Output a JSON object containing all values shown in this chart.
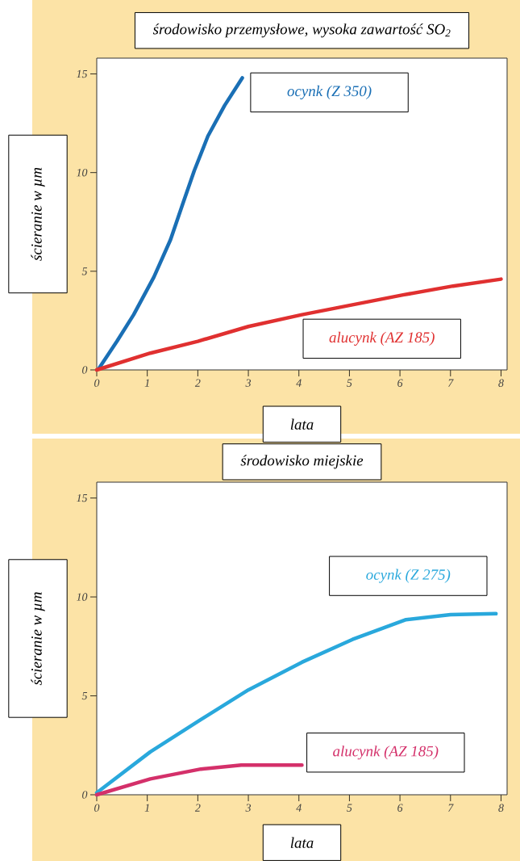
{
  "chart_data": [
    {
      "type": "line",
      "title": "środowisko przemysłowe, wysoka zawartość SO$_{2}$",
      "xlabel": "lata",
      "ylabel": "ścieranie w µm",
      "xlim": [
        0,
        8.12
      ],
      "ylim": [
        0,
        15.8
      ],
      "xticks": [
        0,
        1,
        2,
        3,
        4,
        5,
        6,
        7,
        8
      ],
      "yticks": [
        0,
        5,
        10,
        15
      ],
      "series": [
        {
          "name": "ocynk (Z 350)",
          "color": "#1a6fb5",
          "x": [
            0.05,
            0.4,
            0.73,
            1.13,
            1.46,
            1.7,
            1.93,
            2.2,
            2.53,
            2.88
          ],
          "values": [
            0.1,
            1.45,
            2.8,
            4.7,
            6.6,
            8.4,
            10.1,
            11.85,
            13.4,
            14.8
          ]
        },
        {
          "name": "alucynk (AZ 185)",
          "color": "#e03030",
          "x": [
            0,
            1.06,
            2,
            3,
            4.06,
            5.06,
            6.06,
            7.05,
            8
          ],
          "values": [
            0,
            0.85,
            1.45,
            2.2,
            2.8,
            3.3,
            3.8,
            4.25,
            4.6
          ]
        }
      ]
    },
    {
      "type": "line",
      "title": "środowisko miejskie",
      "xlabel": "lata",
      "ylabel": "ścieranie w µm",
      "xlim": [
        0,
        8.12
      ],
      "ylim": [
        0,
        15.8
      ],
      "xticks": [
        0,
        1,
        2,
        3,
        4,
        5,
        6,
        7,
        8
      ],
      "yticks": [
        0,
        5,
        10,
        15
      ],
      "series": [
        {
          "name": "ocynk (Z 275)",
          "color": "#29a8dc",
          "x": [
            0,
            1.06,
            2.06,
            3,
            4.06,
            5.06,
            6.12,
            7,
            7.9
          ],
          "values": [
            0.1,
            2.17,
            3.8,
            5.3,
            6.7,
            7.85,
            8.85,
            9.1,
            9.15
          ]
        },
        {
          "name": "alucynk (AZ 185)",
          "color": "#d4306a",
          "x": [
            0,
            1.06,
            2.06,
            2.86,
            4.06
          ],
          "values": [
            0,
            0.8,
            1.3,
            1.5,
            1.5
          ]
        }
      ]
    }
  ]
}
